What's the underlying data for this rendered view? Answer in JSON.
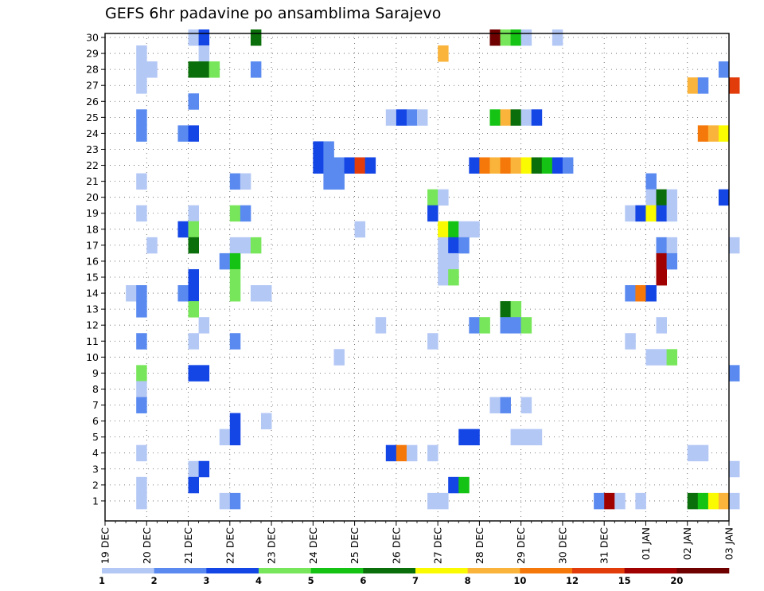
{
  "chart_data": {
    "type": "heatmap",
    "title": "GEFS 6hr padavine po ansamblima Sarajevo",
    "x_ticks": [
      "19 DEC",
      "20 DEC",
      "21 DEC",
      "22 DEC",
      "23 DEC",
      "24 DEC",
      "25 DEC",
      "26 DEC",
      "27 DEC",
      "28 DEC",
      "29 DEC",
      "30 DEC",
      "31 DEC",
      "01 JAN",
      "02 JAN",
      "03 JAN"
    ],
    "y_ticks": [
      "1",
      "2",
      "3",
      "4",
      "5",
      "6",
      "7",
      "8",
      "9",
      "10",
      "11",
      "12",
      "13",
      "14",
      "15",
      "16",
      "17",
      "18",
      "19",
      "20",
      "21",
      "22",
      "23",
      "24",
      "25",
      "26",
      "27",
      "28",
      "29",
      "30"
    ],
    "grid": true,
    "legend_position": "bottom",
    "legend": {
      "labels": [
        "1",
        "2",
        "3",
        "4",
        "5",
        "6",
        "7",
        "8",
        "10",
        "12",
        "15",
        "20"
      ],
      "colors": [
        "#b4c8f5",
        "#5a8af0",
        "#1446e6",
        "#78e65a",
        "#14c314",
        "#0a6e0a",
        "#fafa00",
        "#fab43c",
        "#f5780a",
        "#e13c0a",
        "#a00000",
        "#6e0000"
      ]
    },
    "x_unit_note": "time step index (6-hour steps from 19 DEC 00Z)",
    "cells": [
      {
        "t": 8,
        "m": 30,
        "c": 1
      },
      {
        "t": 9,
        "m": 30,
        "c": 3
      },
      {
        "t": 14,
        "m": 30,
        "c": 6
      },
      {
        "t": 37,
        "m": 30,
        "c": 12
      },
      {
        "t": 38,
        "m": 30,
        "c": 4
      },
      {
        "t": 39,
        "m": 30,
        "c": 5
      },
      {
        "t": 40,
        "m": 30,
        "c": 1
      },
      {
        "t": 43,
        "m": 30,
        "c": 1
      },
      {
        "t": 3,
        "m": 29,
        "c": 1
      },
      {
        "t": 9,
        "m": 29,
        "c": 1
      },
      {
        "t": 32,
        "m": 29,
        "c": 8
      },
      {
        "t": 3,
        "m": 28,
        "c": 1
      },
      {
        "t": 4,
        "m": 28,
        "c": 1
      },
      {
        "t": 9,
        "m": 28,
        "c": 6
      },
      {
        "t": 8,
        "m": 28,
        "c": 6
      },
      {
        "t": 10,
        "m": 28,
        "c": 4
      },
      {
        "t": 14,
        "m": 28,
        "c": 2
      },
      {
        "t": 59,
        "m": 28,
        "c": 2
      },
      {
        "t": 3,
        "m": 27,
        "c": 1
      },
      {
        "t": 56,
        "m": 27,
        "c": 8
      },
      {
        "t": 57,
        "m": 27,
        "c": 2
      },
      {
        "t": 60,
        "m": 27,
        "c": 10
      },
      {
        "t": 8,
        "m": 26,
        "c": 2
      },
      {
        "t": 3,
        "m": 25,
        "c": 2
      },
      {
        "t": 27,
        "m": 25,
        "c": 1
      },
      {
        "t": 28,
        "m": 25,
        "c": 3
      },
      {
        "t": 29,
        "m": 25,
        "c": 2
      },
      {
        "t": 30,
        "m": 25,
        "c": 1
      },
      {
        "t": 37,
        "m": 25,
        "c": 5
      },
      {
        "t": 38,
        "m": 25,
        "c": 8
      },
      {
        "t": 39,
        "m": 25,
        "c": 6
      },
      {
        "t": 40,
        "m": 25,
        "c": 1
      },
      {
        "t": 41,
        "m": 25,
        "c": 3
      },
      {
        "t": 3,
        "m": 24,
        "c": 2
      },
      {
        "t": 7,
        "m": 24,
        "c": 2
      },
      {
        "t": 8,
        "m": 24,
        "c": 3
      },
      {
        "t": 57,
        "m": 24,
        "c": 9
      },
      {
        "t": 58,
        "m": 24,
        "c": 8
      },
      {
        "t": 59,
        "m": 24,
        "c": 7
      },
      {
        "t": 20,
        "m": 23,
        "c": 3
      },
      {
        "t": 21,
        "m": 23,
        "c": 2
      },
      {
        "t": 20,
        "m": 22,
        "c": 3
      },
      {
        "t": 21,
        "m": 22,
        "c": 2
      },
      {
        "t": 22,
        "m": 22,
        "c": 2
      },
      {
        "t": 23,
        "m": 22,
        "c": 3
      },
      {
        "t": 24,
        "m": 22,
        "c": 10
      },
      {
        "t": 25,
        "m": 22,
        "c": 3
      },
      {
        "t": 35,
        "m": 22,
        "c": 3
      },
      {
        "t": 36,
        "m": 22,
        "c": 9
      },
      {
        "t": 37,
        "m": 22,
        "c": 8
      },
      {
        "t": 38,
        "m": 22,
        "c": 9
      },
      {
        "t": 39,
        "m": 22,
        "c": 8
      },
      {
        "t": 40,
        "m": 22,
        "c": 7
      },
      {
        "t": 41,
        "m": 22,
        "c": 6
      },
      {
        "t": 42,
        "m": 22,
        "c": 5
      },
      {
        "t": 43,
        "m": 22,
        "c": 3
      },
      {
        "t": 44,
        "m": 22,
        "c": 2
      },
      {
        "t": 3,
        "m": 21,
        "c": 1
      },
      {
        "t": 12,
        "m": 21,
        "c": 2
      },
      {
        "t": 13,
        "m": 21,
        "c": 1
      },
      {
        "t": 21,
        "m": 21,
        "c": 2
      },
      {
        "t": 22,
        "m": 21,
        "c": 2
      },
      {
        "t": 52,
        "m": 21,
        "c": 2
      },
      {
        "t": 31,
        "m": 20,
        "c": 4
      },
      {
        "t": 32,
        "m": 20,
        "c": 1
      },
      {
        "t": 52,
        "m": 20,
        "c": 1
      },
      {
        "t": 53,
        "m": 20,
        "c": 6
      },
      {
        "t": 54,
        "m": 20,
        "c": 1
      },
      {
        "t": 59,
        "m": 20,
        "c": 3
      },
      {
        "t": 3,
        "m": 19,
        "c": 1
      },
      {
        "t": 8,
        "m": 19,
        "c": 1
      },
      {
        "t": 12,
        "m": 19,
        "c": 4
      },
      {
        "t": 13,
        "m": 19,
        "c": 2
      },
      {
        "t": 31,
        "m": 19,
        "c": 3
      },
      {
        "t": 50,
        "m": 19,
        "c": 1
      },
      {
        "t": 51,
        "m": 19,
        "c": 3
      },
      {
        "t": 52,
        "m": 19,
        "c": 7
      },
      {
        "t": 53,
        "m": 19,
        "c": 3
      },
      {
        "t": 54,
        "m": 19,
        "c": 1
      },
      {
        "t": 7,
        "m": 18,
        "c": 3
      },
      {
        "t": 8,
        "m": 18,
        "c": 4
      },
      {
        "t": 24,
        "m": 18,
        "c": 1
      },
      {
        "t": 32,
        "m": 18,
        "c": 7
      },
      {
        "t": 33,
        "m": 18,
        "c": 5
      },
      {
        "t": 34,
        "m": 18,
        "c": 1
      },
      {
        "t": 35,
        "m": 18,
        "c": 1
      },
      {
        "t": 4,
        "m": 17,
        "c": 1
      },
      {
        "t": 8,
        "m": 17,
        "c": 6
      },
      {
        "t": 12,
        "m": 17,
        "c": 1
      },
      {
        "t": 13,
        "m": 17,
        "c": 1
      },
      {
        "t": 14,
        "m": 17,
        "c": 4
      },
      {
        "t": 32,
        "m": 17,
        "c": 1
      },
      {
        "t": 33,
        "m": 17,
        "c": 3
      },
      {
        "t": 34,
        "m": 17,
        "c": 2
      },
      {
        "t": 53,
        "m": 17,
        "c": 2
      },
      {
        "t": 54,
        "m": 17,
        "c": 1
      },
      {
        "t": 60,
        "m": 17,
        "c": 1
      },
      {
        "t": 11,
        "m": 16,
        "c": 2
      },
      {
        "t": 12,
        "m": 16,
        "c": 5
      },
      {
        "t": 32,
        "m": 16,
        "c": 1
      },
      {
        "t": 33,
        "m": 16,
        "c": 1
      },
      {
        "t": 53,
        "m": 16,
        "c": 11
      },
      {
        "t": 54,
        "m": 16,
        "c": 2
      },
      {
        "t": 8,
        "m": 15,
        "c": 3
      },
      {
        "t": 12,
        "m": 15,
        "c": 4
      },
      {
        "t": 32,
        "m": 15,
        "c": 1
      },
      {
        "t": 33,
        "m": 15,
        "c": 4
      },
      {
        "t": 53,
        "m": 15,
        "c": 11
      },
      {
        "t": 2,
        "m": 14,
        "c": 1
      },
      {
        "t": 3,
        "m": 14,
        "c": 2
      },
      {
        "t": 7,
        "m": 14,
        "c": 2
      },
      {
        "t": 8,
        "m": 14,
        "c": 3
      },
      {
        "t": 12,
        "m": 14,
        "c": 4
      },
      {
        "t": 14,
        "m": 14,
        "c": 1
      },
      {
        "t": 15,
        "m": 14,
        "c": 1
      },
      {
        "t": 50,
        "m": 14,
        "c": 2
      },
      {
        "t": 51,
        "m": 14,
        "c": 9
      },
      {
        "t": 52,
        "m": 14,
        "c": 3
      },
      {
        "t": 3,
        "m": 13,
        "c": 2
      },
      {
        "t": 8,
        "m": 13,
        "c": 4
      },
      {
        "t": 38,
        "m": 13,
        "c": 6
      },
      {
        "t": 39,
        "m": 13,
        "c": 4
      },
      {
        "t": 9,
        "m": 12,
        "c": 1
      },
      {
        "t": 26,
        "m": 12,
        "c": 1
      },
      {
        "t": 35,
        "m": 12,
        "c": 2
      },
      {
        "t": 36,
        "m": 12,
        "c": 4
      },
      {
        "t": 38,
        "m": 12,
        "c": 2
      },
      {
        "t": 39,
        "m": 12,
        "c": 2
      },
      {
        "t": 40,
        "m": 12,
        "c": 4
      },
      {
        "t": 53,
        "m": 12,
        "c": 1
      },
      {
        "t": 3,
        "m": 11,
        "c": 2
      },
      {
        "t": 8,
        "m": 11,
        "c": 1
      },
      {
        "t": 12,
        "m": 11,
        "c": 2
      },
      {
        "t": 31,
        "m": 11,
        "c": 1
      },
      {
        "t": 50,
        "m": 11,
        "c": 1
      },
      {
        "t": 22,
        "m": 10,
        "c": 1
      },
      {
        "t": 52,
        "m": 10,
        "c": 1
      },
      {
        "t": 53,
        "m": 10,
        "c": 1
      },
      {
        "t": 54,
        "m": 10,
        "c": 4
      },
      {
        "t": 3,
        "m": 9,
        "c": 4
      },
      {
        "t": 8,
        "m": 9,
        "c": 3
      },
      {
        "t": 9,
        "m": 9,
        "c": 3
      },
      {
        "t": 60,
        "m": 9,
        "c": 2
      },
      {
        "t": 3,
        "m": 8,
        "c": 1
      },
      {
        "t": 3,
        "m": 7,
        "c": 2
      },
      {
        "t": 37,
        "m": 7,
        "c": 1
      },
      {
        "t": 38,
        "m": 7,
        "c": 2
      },
      {
        "t": 40,
        "m": 7,
        "c": 1
      },
      {
        "t": 12,
        "m": 6,
        "c": 3
      },
      {
        "t": 15,
        "m": 6,
        "c": 1
      },
      {
        "t": 11,
        "m": 5,
        "c": 1
      },
      {
        "t": 12,
        "m": 5,
        "c": 3
      },
      {
        "t": 34,
        "m": 5,
        "c": 3
      },
      {
        "t": 35,
        "m": 5,
        "c": 3
      },
      {
        "t": 39,
        "m": 5,
        "c": 1
      },
      {
        "t": 40,
        "m": 5,
        "c": 1
      },
      {
        "t": 41,
        "m": 5,
        "c": 1
      },
      {
        "t": 3,
        "m": 4,
        "c": 1
      },
      {
        "t": 27,
        "m": 4,
        "c": 3
      },
      {
        "t": 28,
        "m": 4,
        "c": 9
      },
      {
        "t": 29,
        "m": 4,
        "c": 1
      },
      {
        "t": 31,
        "m": 4,
        "c": 1
      },
      {
        "t": 56,
        "m": 4,
        "c": 1
      },
      {
        "t": 57,
        "m": 4,
        "c": 1
      },
      {
        "t": 8,
        "m": 3,
        "c": 1
      },
      {
        "t": 9,
        "m": 3,
        "c": 3
      },
      {
        "t": 60,
        "m": 3,
        "c": 1
      },
      {
        "t": 3,
        "m": 2,
        "c": 1
      },
      {
        "t": 8,
        "m": 2,
        "c": 3
      },
      {
        "t": 33,
        "m": 2,
        "c": 3
      },
      {
        "t": 34,
        "m": 2,
        "c": 5
      },
      {
        "t": 3,
        "m": 1,
        "c": 1
      },
      {
        "t": 11,
        "m": 1,
        "c": 1
      },
      {
        "t": 12,
        "m": 1,
        "c": 2
      },
      {
        "t": 31,
        "m": 1,
        "c": 1
      },
      {
        "t": 32,
        "m": 1,
        "c": 1
      },
      {
        "t": 47,
        "m": 1,
        "c": 2
      },
      {
        "t": 48,
        "m": 1,
        "c": 11
      },
      {
        "t": 49,
        "m": 1,
        "c": 1
      },
      {
        "t": 51,
        "m": 1,
        "c": 1
      },
      {
        "t": 56,
        "m": 1,
        "c": 6
      },
      {
        "t": 57,
        "m": 1,
        "c": 5
      },
      {
        "t": 58,
        "m": 1,
        "c": 7
      },
      {
        "t": 59,
        "m": 1,
        "c": 8
      },
      {
        "t": 60,
        "m": 1,
        "c": 1
      }
    ]
  }
}
